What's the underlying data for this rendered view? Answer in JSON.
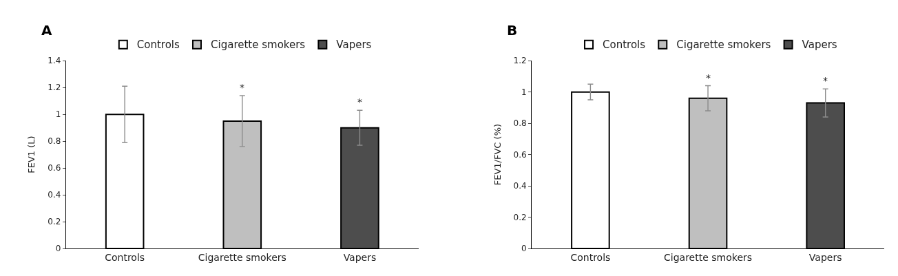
{
  "chart_data": [
    {
      "type": "bar",
      "title": "A",
      "ylabel": "FEV1 (L)",
      "categories": [
        "Controls",
        "Cigarette smokers",
        "Vapers"
      ],
      "series": [
        {
          "name": "Controls",
          "color": "#ffffff",
          "values": [
            1.0,
            null,
            null
          ],
          "errors": [
            [
              0.79,
              1.21
            ],
            null,
            null
          ]
        },
        {
          "name": "Cigarette smokers",
          "color": "#bfbfbf",
          "values": [
            null,
            0.95,
            null
          ],
          "errors": [
            null,
            [
              0.76,
              1.14
            ],
            null
          ]
        },
        {
          "name": "Vapers",
          "color": "#4d4d4d",
          "values": [
            null,
            null,
            0.9
          ],
          "errors": [
            null,
            null,
            [
              0.77,
              1.03
            ]
          ]
        }
      ],
      "ylim": [
        0,
        1.4
      ],
      "yticks": [
        0,
        0.2,
        0.4,
        0.6,
        0.8,
        1,
        1.2,
        1.4
      ],
      "legend": "top",
      "annotations": [
        "*",
        "*"
      ]
    },
    {
      "type": "bar",
      "title": "B",
      "ylabel": "FEV1/FVC (%)",
      "categories": [
        "Controls",
        "Cigarette smokers",
        "Vapers"
      ],
      "series": [
        {
          "name": "Controls",
          "color": "#ffffff",
          "values": [
            1.0,
            null,
            null
          ],
          "errors": [
            [
              0.95,
              1.05
            ],
            null,
            null
          ]
        },
        {
          "name": "Cigarette smokers",
          "color": "#bfbfbf",
          "values": [
            null,
            0.96,
            null
          ],
          "errors": [
            null,
            [
              0.88,
              1.04
            ],
            null
          ]
        },
        {
          "name": "Vapers",
          "color": "#4d4d4d",
          "values": [
            null,
            null,
            0.93
          ],
          "errors": [
            null,
            null,
            [
              0.84,
              1.02
            ]
          ]
        }
      ],
      "ylim": [
        0,
        1.2
      ],
      "yticks": [
        0,
        0.2,
        0.4,
        0.6,
        0.8,
        1,
        1.2
      ],
      "legend": "top",
      "annotations": [
        "*",
        "*"
      ]
    }
  ]
}
